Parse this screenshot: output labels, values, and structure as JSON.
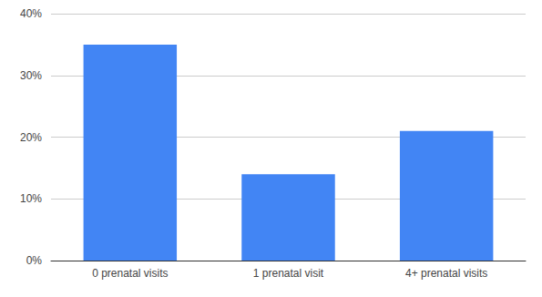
{
  "chart_data": {
    "type": "bar",
    "categories": [
      "0 prenatal visits",
      "1 prenatal visit",
      "4+ prenatal visits"
    ],
    "values": [
      35,
      14,
      21
    ],
    "color": "#4285f4",
    "ylim": [
      0,
      40
    ],
    "yticks": [
      {
        "value": 0,
        "label": "0%"
      },
      {
        "value": 10,
        "label": "10%"
      },
      {
        "value": 20,
        "label": "20%"
      },
      {
        "value": 30,
        "label": "30%"
      },
      {
        "value": 40,
        "label": "40%"
      }
    ],
    "grid": true
  }
}
